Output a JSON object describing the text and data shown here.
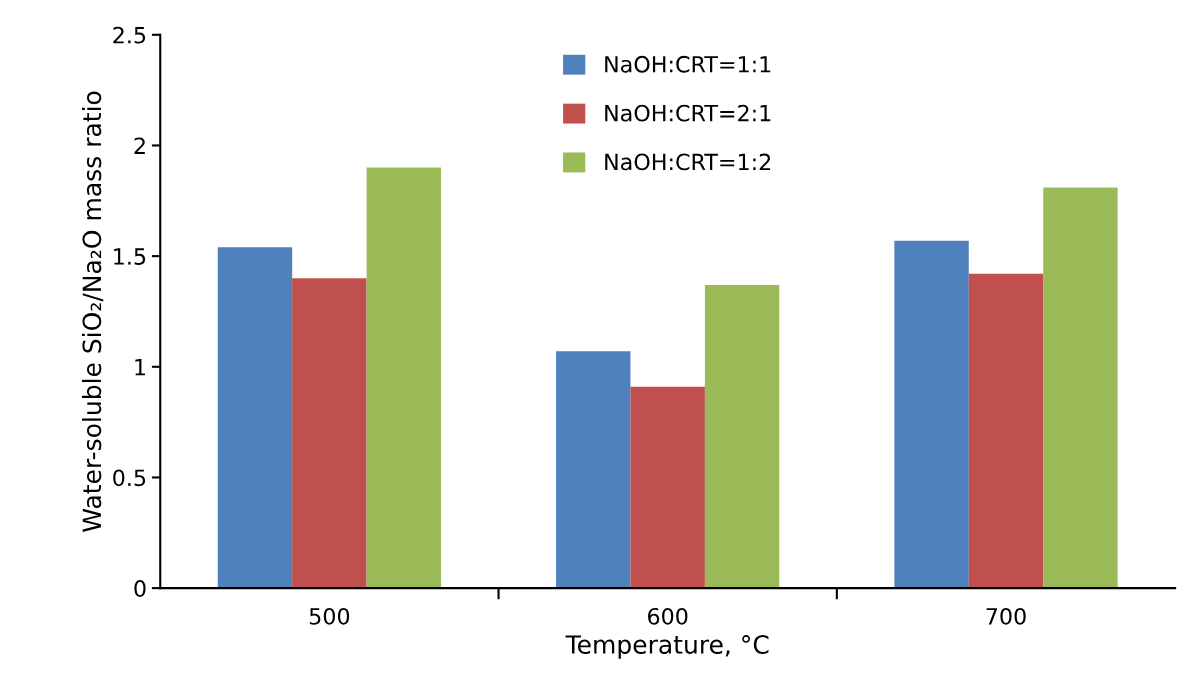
{
  "chart_data": {
    "type": "bar",
    "xlabel": "Temperature, °C",
    "ylabel": "Water-soluble SiO₂/Na₂O mass ratio",
    "categories": [
      "500",
      "600",
      "700"
    ],
    "series": [
      {
        "name": "NaOH:CRT=1:1",
        "color": "#4f81bd",
        "values": [
          1.54,
          1.07,
          1.57
        ]
      },
      {
        "name": "NaOH:CRT=2:1",
        "color": "#c0504d",
        "values": [
          1.4,
          0.91,
          1.42
        ]
      },
      {
        "name": "NaOH:CRT=1:2",
        "color": "#9bbb59",
        "values": [
          1.9,
          1.37,
          1.81
        ]
      }
    ],
    "ylim": [
      0,
      2.5
    ],
    "yticks": [
      0,
      0.5,
      1,
      1.5,
      2,
      2.5
    ],
    "grid": false,
    "legend": "top"
  }
}
